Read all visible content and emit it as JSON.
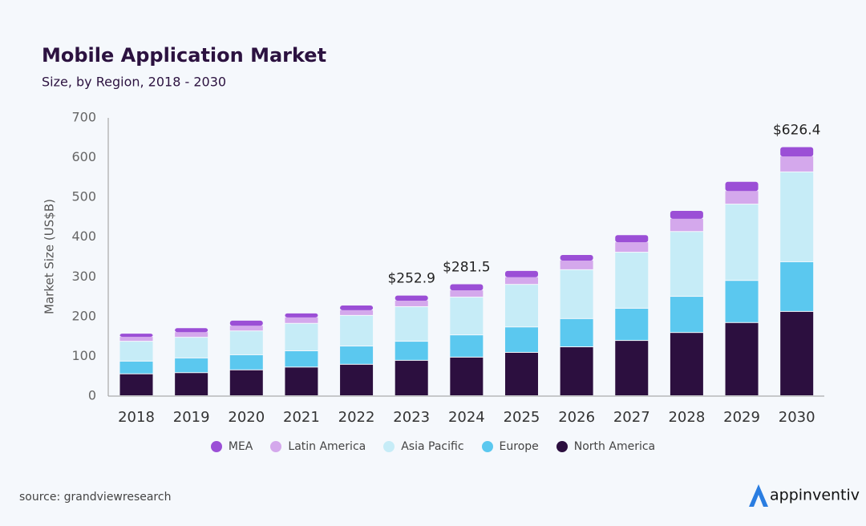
{
  "chart_data": {
    "type": "stacked_bar",
    "title": "Mobile Application Market",
    "subtitle": "Size, by Region, 2018 - 2030",
    "y_label": "Market Size (US$B)",
    "categories": [
      "2018",
      "2019",
      "2020",
      "2021",
      "2022",
      "2023",
      "2024",
      "2025",
      "2026",
      "2027",
      "2028",
      "2029",
      "2030"
    ],
    "series": [
      {
        "name": "MEA",
        "color": "#9b4fd6",
        "values": [
          8,
          10,
          13,
          10,
          12,
          12.9,
          15.5,
          16,
          14,
          18,
          20,
          23,
          23.4
        ]
      },
      {
        "name": "Latin America",
        "color": "#d4a8ec",
        "values": [
          12,
          14,
          14,
          16,
          14,
          16,
          18,
          19,
          24,
          26,
          33,
          34,
          40
        ]
      },
      {
        "name": "Asia Pacific",
        "color": "#c6ecf7",
        "values": [
          50,
          52,
          60,
          69,
          77,
          87,
          95,
          107,
          123,
          141,
          163,
          192,
          226
        ]
      },
      {
        "name": "Europe",
        "color": "#5bc8ef",
        "values": [
          32,
          37,
          38,
          41,
          46,
          48,
          56,
          64,
          71,
          81,
          91,
          106,
          125
        ]
      },
      {
        "name": "North America",
        "color": "#2c0f3f",
        "values": [
          55,
          58,
          65,
          72,
          79,
          89,
          97,
          109,
          123,
          139,
          159,
          184,
          212
        ]
      }
    ],
    "annotations": [
      {
        "x": "2023",
        "label": "$252.9",
        "value": 252.9
      },
      {
        "x": "2024",
        "label": "$281.5",
        "value": 281.5
      },
      {
        "x": "2030",
        "label": "$626.4",
        "value": 626.4
      }
    ],
    "ylim": [
      0,
      700
    ],
    "yticks": [
      0,
      100,
      200,
      300,
      400,
      500,
      600,
      700
    ],
    "grid": false,
    "legend": "bottom"
  },
  "source": "source: grandviewresearch",
  "logo": "appinventiv"
}
